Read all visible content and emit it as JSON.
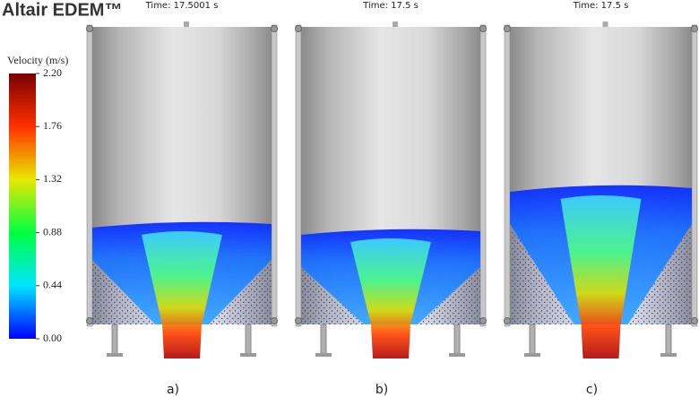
{
  "header": {
    "logo": "Altair EDEM™"
  },
  "colorbar": {
    "title": "Velocity (m/s)",
    "ticks": [
      {
        "value": 2.2,
        "label": "2.20"
      },
      {
        "value": 1.76,
        "label": "1.76"
      },
      {
        "value": 1.32,
        "label": "1.32"
      },
      {
        "value": 0.88,
        "label": "0.88"
      },
      {
        "value": 0.44,
        "label": "0.44"
      },
      {
        "value": 0,
        "label": "0.00"
      }
    ]
  },
  "panels": [
    {
      "time": "Time: 17.5001 s",
      "label": "a)"
    },
    {
      "time": "Time: 17.5 s",
      "label": "b)"
    },
    {
      "time": "Time: 17.5 s",
      "label": "c)"
    }
  ]
}
